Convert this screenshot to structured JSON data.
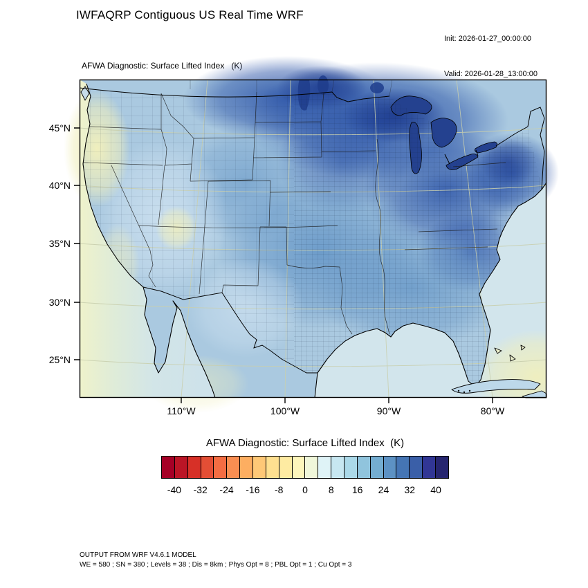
{
  "header": {
    "title": "IWFAQRP Contiguous US Real Time WRF",
    "init_label": "Init: 2026-01-27_00:00:00",
    "valid_label": "Valid: 2026-01-28_13:00:00"
  },
  "map": {
    "field_label": "AFWA Diagnostic: Surface Lifted Index   (K)",
    "lat_ticks": [
      "45°N",
      "40°N",
      "35°N",
      "30°N",
      "25°N"
    ],
    "lon_ticks": [
      "110°W",
      "100°W",
      "90°W",
      "80°W"
    ]
  },
  "colorbar": {
    "title": "AFWA Diagnostic: Surface Lifted Index  (K)",
    "tick_labels": [
      "-40",
      "-32",
      "-24",
      "-16",
      "-8",
      "0",
      "8",
      "16",
      "24",
      "32",
      "40"
    ],
    "colors": [
      "#a50026",
      "#bb1526",
      "#d73027",
      "#e34e35",
      "#f46d43",
      "#f98e52",
      "#fdae61",
      "#fec877",
      "#fee090",
      "#feeba2",
      "#fdf6bc",
      "#f0f7da",
      "#dff3f7",
      "#c7e7f1",
      "#abd9e9",
      "#90c4dd",
      "#74add1",
      "#5d92c4",
      "#4575b4",
      "#3a5fa8",
      "#313695",
      "#26256f"
    ]
  },
  "footer": {
    "line1": "OUTPUT FROM WRF V4.6.1 MODEL",
    "line2": "WE = 580 ; SN = 380 ; Levels = 38 ; Dis = 8km ; Phys Opt = 8 ; PBL Opt = 1 ; Cu Opt = 3"
  },
  "chart_data": {
    "type": "heatmap",
    "title": "AFWA Diagnostic: Surface Lifted Index (K)",
    "region": "Contiguous US (Lambert conformal WRF domain)",
    "x_ticks": [
      "110°W",
      "100°W",
      "90°W",
      "80°W"
    ],
    "y_ticks": [
      "45°N",
      "40°N",
      "35°N",
      "30°N",
      "25°N"
    ],
    "colorbar_tick_values": [
      -40,
      -32,
      -24,
      -16,
      -8,
      0,
      8,
      16,
      24,
      32,
      40
    ],
    "colorbar_levels": [
      -44,
      -40,
      -36,
      -32,
      -28,
      -24,
      -20,
      -16,
      -12,
      -8,
      -4,
      0,
      4,
      8,
      12,
      16,
      20,
      24,
      28,
      32,
      36,
      40,
      44
    ],
    "colorbar_colors": [
      "#a50026",
      "#bb1526",
      "#d73027",
      "#e34e35",
      "#f46d43",
      "#f98e52",
      "#fdae61",
      "#fec877",
      "#fee090",
      "#feeba2",
      "#fdf6bc",
      "#f0f7da",
      "#dff3f7",
      "#c7e7f1",
      "#abd9e9",
      "#90c4dd",
      "#74add1",
      "#5d92c4",
      "#4575b4",
      "#3a5fa8",
      "#313695",
      "#26256f"
    ],
    "legend_position": "bottom",
    "field_summary": "Stable (positive) lifted index everywhere: mostly 8-24 K (light-medium blues) over CONUS; maxima 28-40 K (dark blues) over the upper Midwest, Great Lakes, Ohio Valley, Appalachians and Northeast; 0-8 K (pale yellow/cream) along the Pacific Northwest coast, a small Great Basin patch, the far-west ocean edge and the southeast oceanic corner near the Bahamas."
  }
}
